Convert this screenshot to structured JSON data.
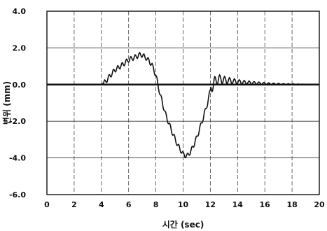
{
  "chart_data": {
    "type": "line",
    "title": "",
    "xlabel": "시간 (sec)",
    "ylabel": "변위 (mm)",
    "xlim": [
      0,
      20
    ],
    "ylim": [
      -6,
      4
    ],
    "xticks": [
      0,
      2,
      4,
      6,
      8,
      10,
      12,
      14,
      16,
      18,
      20
    ],
    "yticks": [
      4,
      2,
      0,
      -2,
      -4,
      -6
    ],
    "xtick_labels": [
      "0",
      "2",
      "4",
      "6",
      "8",
      "10",
      "12",
      "14",
      "16",
      "18",
      "20"
    ],
    "ytick_labels": [
      "4.0",
      "2.0",
      "0.0",
      "-2.0",
      "-4.0",
      "-6.0"
    ],
    "grid": true,
    "baseline": 0,
    "series": [
      {
        "name": "",
        "color": "#111111",
        "x": [
          0,
          1,
          2,
          3,
          4,
          4.3,
          4.6,
          5.0,
          5.5,
          6.0,
          6.5,
          6.9,
          7.3,
          7.7,
          8.0,
          8.3,
          8.7,
          9.2,
          9.6,
          10.0,
          10.3,
          10.6,
          11.0,
          11.4,
          11.8,
          12.0,
          12.3,
          12.6,
          13.0,
          13.5,
          14.0,
          14.5,
          15.0,
          15.5,
          16.0,
          16.5,
          17.0,
          17.5,
          18.0,
          18.5,
          19.0,
          19.3
        ],
        "y": [
          0,
          0,
          0,
          0,
          0,
          0.15,
          0.45,
          0.8,
          1.05,
          1.35,
          1.5,
          1.65,
          1.45,
          1.1,
          0.5,
          -0.5,
          -1.6,
          -2.6,
          -3.3,
          -3.8,
          -3.9,
          -3.6,
          -2.9,
          -2.0,
          -1.0,
          -0.3,
          0.15,
          0.3,
          0.25,
          0.2,
          0.15,
          0.12,
          0.1,
          0.08,
          0.06,
          0.04,
          0.03,
          0.02,
          0.02,
          0.01,
          0.01,
          0
        ]
      }
    ]
  }
}
